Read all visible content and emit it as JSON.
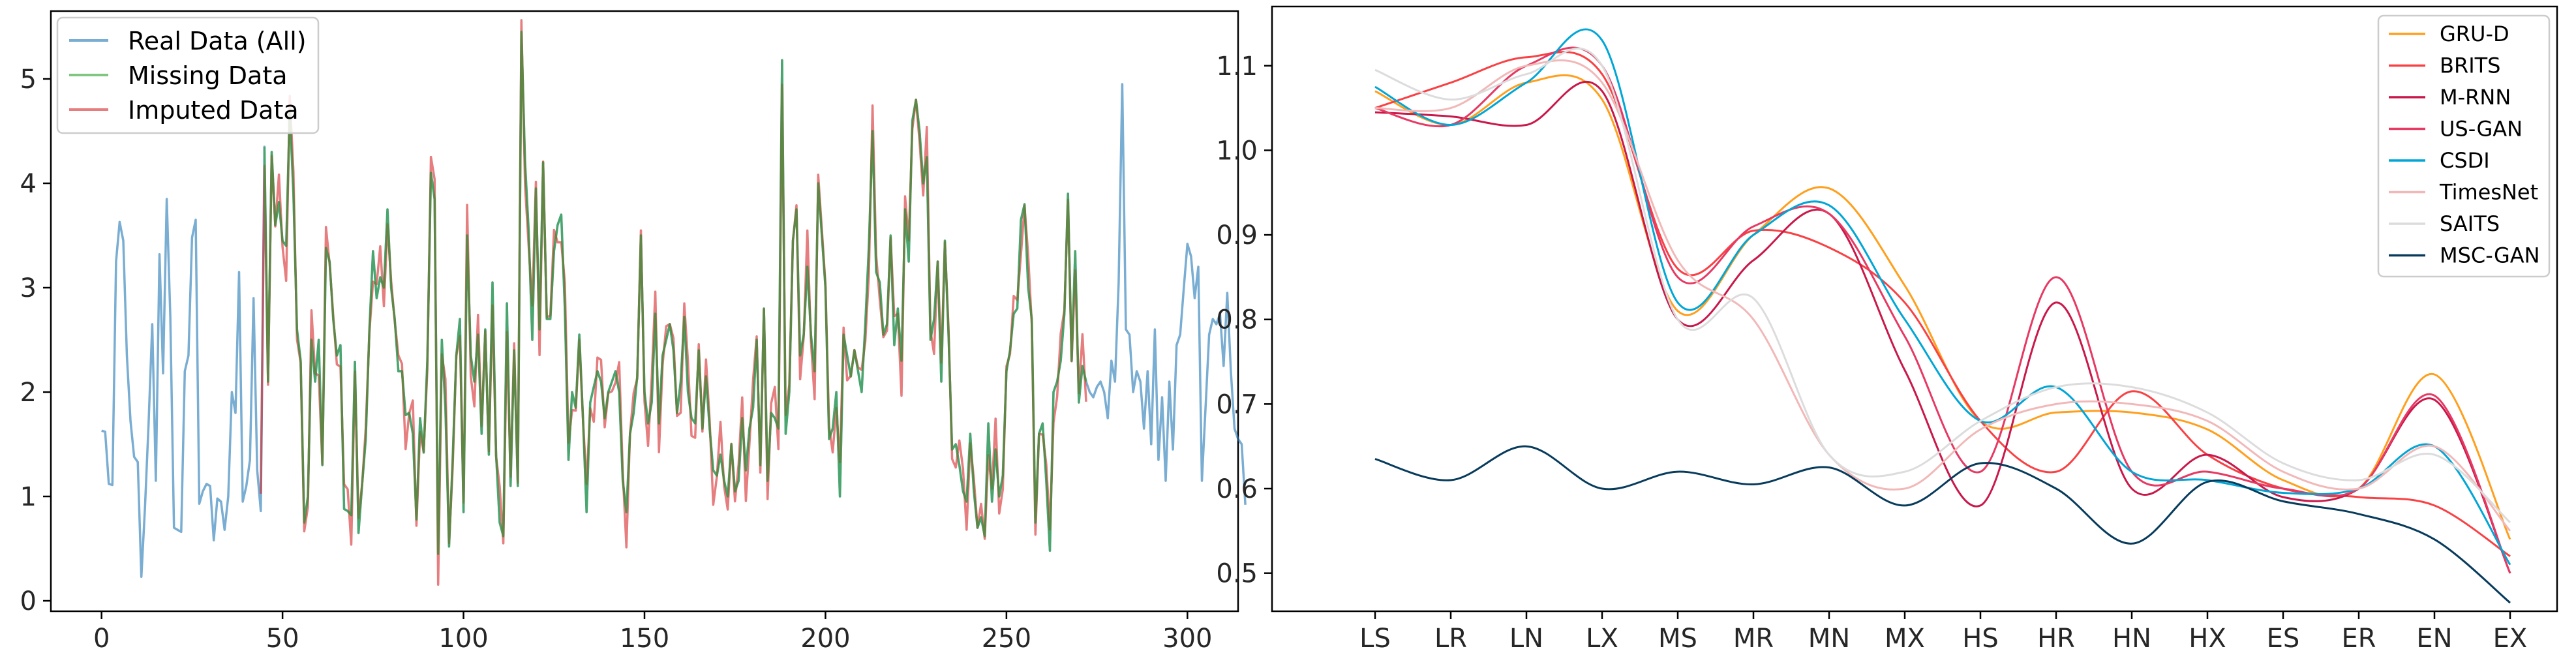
{
  "chart_data": [
    {
      "type": "line",
      "title": "",
      "xlabel": "",
      "ylabel": "",
      "xlim": [
        -14,
        314
      ],
      "ylim": [
        -0.1,
        5.65
      ],
      "xticks": [
        "0",
        "50",
        "100",
        "150",
        "200",
        "250",
        "300"
      ],
      "yticks": [
        "0",
        "1",
        "2",
        "3",
        "4",
        "5"
      ],
      "legend_position": "top-left",
      "series": [
        {
          "name": "Real Data (All)",
          "color": "#1f77b4",
          "values": [
            1.63,
            1.62,
            1.12,
            1.11,
            3.25,
            3.63,
            3.45,
            2.35,
            1.72,
            1.38,
            1.33,
            0.23,
            0.9,
            1.7,
            2.65,
            1.15,
            3.32,
            2.18,
            3.85,
            2.72,
            0.7,
            0.68,
            0.66,
            2.2,
            2.35,
            3.48,
            3.65,
            0.93,
            1.05,
            1.12,
            1.1,
            0.58,
            0.98,
            0.95,
            0.68,
            1.0,
            2.0,
            1.8,
            3.15,
            0.95,
            1.1,
            1.35,
            2.9,
            1.25,
            0.86,
            4.35,
            2.1,
            4.3,
            3.6,
            3.82,
            3.45,
            3.4,
            4.7,
            3.9,
            2.6,
            2.3,
            0.75,
            1.0,
            2.5,
            2.1,
            2.5,
            1.3,
            3.38,
            3.25,
            2.7,
            2.35,
            2.45,
            0.88,
            0.86,
            0.82,
            2.29,
            0.65,
            1.12,
            1.55,
            2.6,
            3.35,
            2.9,
            3.1,
            3.0,
            3.75,
            3.0,
            2.7,
            2.2,
            2.2,
            1.78,
            1.8,
            1.6,
            0.78,
            1.75,
            1.42,
            2.3,
            4.1,
            3.85,
            0.45,
            2.5,
            1.85,
            0.52,
            1.35,
            2.35,
            2.7,
            0.85,
            3.5,
            2.35,
            2.1,
            2.55,
            1.6,
            2.6,
            1.4,
            3.05,
            1.4,
            0.75,
            0.62,
            2.85,
            1.1,
            2.4,
            1.1,
            5.45,
            4.2,
            3.55,
            2.5,
            3.95,
            2.6,
            4.2,
            2.7,
            2.7,
            3.35,
            3.6,
            3.7,
            2.8,
            1.35,
            2.0,
            1.85,
            2.55,
            1.75,
            0.85,
            1.9,
            2.05,
            2.2,
            2.1,
            1.75,
            2.0,
            2.1,
            2.2,
            2.0,
            1.15,
            0.85,
            1.6,
            1.8,
            2.15,
            3.5,
            2.0,
            1.7,
            1.9,
            2.75,
            1.7,
            2.35,
            2.5,
            2.65,
            2.4,
            1.8,
            2.1,
            2.72,
            2.0,
            1.75,
            1.7,
            2.4,
            1.65,
            2.15,
            1.65,
            1.25,
            1.2,
            1.4,
            1.15,
            1.0,
            1.5,
            1.05,
            1.15,
            1.75,
            1.25,
            1.65,
            1.85,
            2.5,
            1.3,
            2.8,
            1.15,
            1.8,
            1.75,
            1.65,
            5.18,
            1.6,
            2.0,
            3.45,
            3.75,
            2.35,
            2.55,
            3.2,
            2.55,
            2.2,
            4.0,
            3.5,
            3.0,
            1.55,
            1.65,
            2.0,
            1.0,
            2.55,
            2.35,
            2.15,
            2.4,
            2.2,
            2.0,
            2.65,
            3.4,
            4.5,
            3.15,
            3.05,
            2.55,
            2.65,
            3.5,
            2.45,
            2.8,
            2.3,
            3.75,
            3.25,
            4.6,
            4.8,
            4.5,
            4.0,
            4.25,
            2.5,
            2.7,
            3.25,
            2.1,
            3.45,
            2.55,
            1.45,
            1.5,
            1.3,
            1.05,
            0.95,
            1.6,
            1.05,
            0.7,
            0.8,
            0.62,
            1.7,
            0.95,
            1.45,
            1.0,
            1.2,
            2.2,
            2.4,
            2.75,
            2.8,
            3.65,
            3.8,
            3.0,
            2.7,
            0.75,
            1.6,
            1.7,
            1.15,
            0.48,
            2.0,
            2.1,
            2.3,
            2.75,
            3.9,
            2.3,
            3.35,
            1.9,
            2.25,
            2.1,
            2.0,
            1.95,
            2.05,
            2.1,
            2.0,
            1.75,
            2.3,
            2.1,
            3.05,
            4.95,
            2.6,
            2.55,
            2.0,
            2.2,
            2.1,
            1.65,
            2.2,
            1.5,
            2.6,
            1.35,
            1.95,
            1.15,
            2.1,
            1.45,
            2.45,
            2.55,
            3.0,
            3.42,
            3.3,
            2.9,
            3.2,
            1.15,
            1.85,
            2.55,
            2.7,
            2.65,
            2.75,
            2.25,
            2.95,
            2.2,
            1.65,
            1.55,
            1.5,
            0.92
          ]
        },
        {
          "name": "Missing Data",
          "color": "#2ca02c",
          "start": 45,
          "end": 272
        },
        {
          "name": "Imputed Data",
          "color": "#d62728",
          "start": 44,
          "end": 272
        }
      ]
    },
    {
      "type": "line",
      "title": "",
      "xlabel": "",
      "ylabel": "",
      "ylim": [
        0.455,
        1.17
      ],
      "categories": [
        "LS",
        "LR",
        "LN",
        "LX",
        "MS",
        "MR",
        "MN",
        "MX",
        "HS",
        "HR",
        "HN",
        "HX",
        "ES",
        "ER",
        "EN",
        "EX"
      ],
      "yticks": [
        "0.5",
        "0.6",
        "0.7",
        "0.8",
        "0.9",
        "1.0",
        "1.1"
      ],
      "legend_position": "top-right",
      "series": [
        {
          "name": "GRU-D",
          "color": "#ff9f1c",
          "values": [
            1.07,
            1.03,
            1.08,
            1.06,
            0.81,
            0.9,
            0.955,
            0.84,
            0.68,
            0.69,
            0.69,
            0.67,
            0.61,
            0.6,
            0.735,
            0.54
          ]
        },
        {
          "name": "BRITS",
          "color": "#f94144",
          "values": [
            1.05,
            1.08,
            1.11,
            1.09,
            0.86,
            0.905,
            0.885,
            0.82,
            0.68,
            0.62,
            0.715,
            0.64,
            0.6,
            0.59,
            0.58,
            0.52
          ]
        },
        {
          "name": "M-RNN",
          "color": "#c9184a",
          "values": [
            1.045,
            1.04,
            1.03,
            1.07,
            0.8,
            0.87,
            0.925,
            0.74,
            0.58,
            0.82,
            0.6,
            0.64,
            0.59,
            0.6,
            0.705,
            0.5
          ]
        },
        {
          "name": "US-GAN",
          "color": "#e63963",
          "values": [
            1.05,
            1.03,
            1.1,
            1.1,
            0.85,
            0.91,
            0.925,
            0.78,
            0.62,
            0.85,
            0.62,
            0.62,
            0.6,
            0.6,
            0.71,
            0.5
          ]
        },
        {
          "name": "CSDI",
          "color": "#00a6d6",
          "values": [
            1.075,
            1.03,
            1.08,
            1.13,
            0.82,
            0.9,
            0.935,
            0.8,
            0.68,
            0.72,
            0.62,
            0.61,
            0.595,
            0.6,
            0.65,
            0.51
          ]
        },
        {
          "name": "TimesNet",
          "color": "#f2b8b8",
          "values": [
            1.05,
            1.05,
            1.1,
            1.08,
            0.87,
            0.8,
            0.64,
            0.6,
            0.67,
            0.7,
            0.7,
            0.68,
            0.62,
            0.6,
            0.65,
            0.55
          ]
        },
        {
          "name": "SAITS",
          "color": "#dcdcdc",
          "values": [
            1.095,
            1.06,
            1.09,
            1.1,
            0.8,
            0.825,
            0.64,
            0.62,
            0.68,
            0.72,
            0.72,
            0.69,
            0.63,
            0.61,
            0.64,
            0.56
          ]
        },
        {
          "name": "MSC-GAN",
          "color": "#073b5c",
          "values": [
            0.635,
            0.61,
            0.65,
            0.6,
            0.62,
            0.605,
            0.625,
            0.58,
            0.63,
            0.6,
            0.535,
            0.608,
            0.585,
            0.57,
            0.54,
            0.465
          ]
        }
      ]
    }
  ]
}
